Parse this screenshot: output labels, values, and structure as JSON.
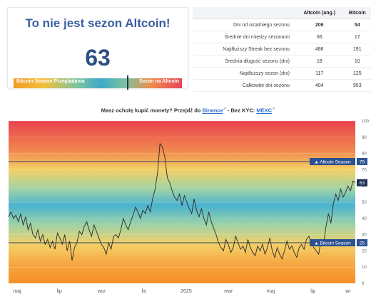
{
  "card": {
    "title": "To nie jest sezon Altcoin!",
    "index_value": "63",
    "gauge_left_label": "Bitcoin Season Przeglądania",
    "gauge_right_label": "Sezon na Altcoin",
    "gauge_value": 63
  },
  "stats_table": {
    "headers": [
      "",
      "Altcoin (ang.)",
      "Bitcoin"
    ],
    "rows": [
      {
        "label": "Dni od ostatniego sezonu",
        "altcoin": "206",
        "bitcoin": "54",
        "highlight": true
      },
      {
        "label": "Średnie dni między sezonami",
        "altcoin": "66",
        "bitcoin": "17"
      },
      {
        "label": "Najdłuższy Streak bez sezonu",
        "altcoin": "486",
        "bitcoin": "191"
      },
      {
        "label": "Średnia długość sezonu (dni)",
        "altcoin": "18",
        "bitcoin": "10"
      },
      {
        "label": "Najdłuższy sezon (dni)",
        "altcoin": "117",
        "bitcoin": "125"
      },
      {
        "label": "Całkowite dni sezonu",
        "altcoin": "404",
        "bitcoin": "953"
      }
    ]
  },
  "promo": {
    "prefix": "Masz ochotę kupić monety? Przejdź do",
    "link1": "Binance",
    "middle": "- Bez KYC:",
    "link2": "MEXC"
  },
  "chart_data": {
    "type": "line",
    "title": "",
    "xlabel": "",
    "ylabel": "",
    "ylim": [
      0,
      100
    ],
    "y_ticks": [
      0,
      10,
      20,
      30,
      40,
      50,
      60,
      70,
      80,
      90,
      100
    ],
    "x_tick_labels": [
      "maj",
      "lip",
      "wrz",
      "lis",
      "2025",
      "mar",
      "maj",
      "lip",
      "wr"
    ],
    "reference_lines": [
      {
        "label": "Altcoin Season",
        "value": 75
      },
      {
        "label": "Bitcoin Season",
        "value": 25
      }
    ],
    "current_value_label": "63",
    "series": [
      {
        "values": [
          41,
          44,
          40,
          42,
          38,
          43,
          36,
          41,
          33,
          37,
          30,
          28,
          33,
          26,
          30,
          24,
          27,
          22,
          26,
          21,
          31,
          28,
          24,
          30,
          20,
          26,
          14,
          22,
          25,
          32,
          30,
          35,
          38,
          33,
          29,
          36,
          32,
          28,
          24,
          22,
          18,
          25,
          21,
          29,
          30,
          28,
          33,
          40,
          36,
          33,
          38,
          42,
          47,
          44,
          40,
          45,
          43,
          48,
          44,
          52,
          58,
          68,
          86,
          84,
          78,
          65,
          62,
          57,
          53,
          51,
          55,
          48,
          54,
          50,
          46,
          43,
          52,
          45,
          41,
          46,
          40,
          36,
          44,
          38,
          34,
          30,
          25,
          22,
          20,
          27,
          24,
          19,
          22,
          29,
          25,
          21,
          23,
          19,
          27,
          22,
          19,
          17,
          23,
          20,
          24,
          18,
          22,
          28,
          20,
          16,
          22,
          18,
          15,
          20,
          26,
          21,
          23,
          19,
          16,
          22,
          24,
          21,
          27,
          29,
          25,
          22,
          20,
          18,
          27,
          24,
          35,
          43,
          37,
          49,
          55,
          51,
          58,
          53,
          56,
          60,
          57,
          63,
          62
        ]
      }
    ]
  }
}
